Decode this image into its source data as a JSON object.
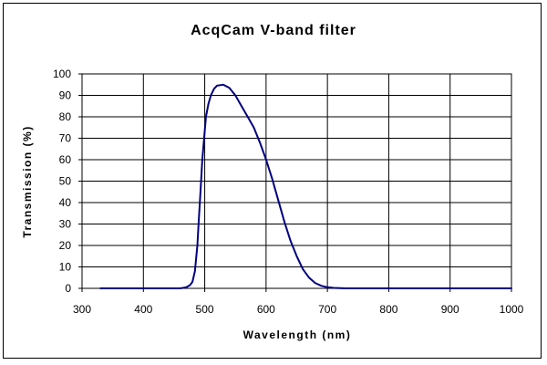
{
  "chart_data": {
    "type": "line",
    "title": "AcqCam V-band filter",
    "xlabel": "Wavelength (nm)",
    "ylabel": "Transmission (%)",
    "xlim": [
      300,
      1000
    ],
    "ylim": [
      0,
      100
    ],
    "x_ticks": [
      "300",
      "400",
      "500",
      "600",
      "700",
      "800",
      "900",
      "1000"
    ],
    "y_ticks": [
      "0",
      "10",
      "20",
      "30",
      "40",
      "50",
      "60",
      "70",
      "80",
      "90",
      "100"
    ],
    "grid": true,
    "legend": "none",
    "line_color": "#000080",
    "series": [
      {
        "x": [
          330,
          400,
          440,
          460,
          470,
          476,
          480,
          484,
          488,
          490,
          493,
          496,
          499,
          502,
          506,
          510,
          515,
          520,
          530,
          540,
          550,
          560,
          570,
          580,
          590,
          600,
          610,
          620,
          630,
          640,
          650,
          660,
          670,
          680,
          690,
          700,
          710,
          720,
          730,
          740,
          750,
          760,
          780,
          800,
          900,
          1000
        ],
        "y": [
          0,
          0,
          0,
          0,
          0.5,
          1.5,
          3,
          8,
          20,
          30,
          45,
          60,
          70,
          80,
          86,
          90,
          93,
          94.5,
          95,
          93.5,
          90,
          85,
          80,
          75,
          68,
          60,
          51,
          41,
          31,
          22,
          15,
          9,
          5,
          2.5,
          1.2,
          0.5,
          0.2,
          0.1,
          0,
          0,
          0,
          0,
          0,
          0,
          0,
          0
        ]
      }
    ]
  }
}
